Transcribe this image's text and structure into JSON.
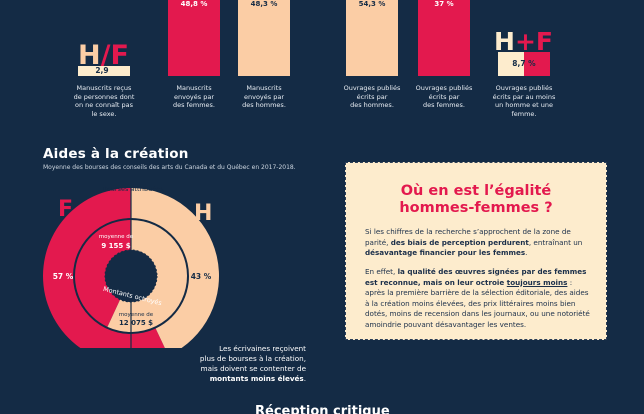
{
  "top_bars": [
    {
      "pct": "",
      "caption_lines": [
        "Manuscrits reçus",
        "de personnes dont",
        "on ne connaît pas",
        "le sexe."
      ],
      "bold_line": -1,
      "color": "",
      "hf_label": "H/F",
      "small_pct": "2,9"
    },
    {
      "pct": "48,8 %",
      "caption_lines": [
        "Manuscrits",
        "envoyés par",
        "des femmes."
      ],
      "bold_line": -1,
      "color": "#e3194e",
      "hf_label": "",
      "small_pct": ""
    },
    {
      "pct": "48,3 %",
      "caption_lines": [
        "Manuscrits",
        "envoyés par",
        "des hommes."
      ],
      "bold_line": -1,
      "color": "#fbcda5",
      "hf_label": "",
      "small_pct": ""
    },
    {
      "pct": "54,3 %",
      "caption_lines": [
        "Ouvrages publiés",
        "écrits par",
        "des hommes."
      ],
      "bold_line": -1,
      "color": "#fbcda5",
      "hf_label": "",
      "small_pct": ""
    },
    {
      "pct": "37 %",
      "caption_lines": [
        "Ouvrages publiés",
        "écrits par",
        "des femmes."
      ],
      "bold_line": -1,
      "color": "#e3194e",
      "hf_label": "",
      "small_pct": ""
    },
    {
      "pct": "",
      "caption_lines": [
        "Ouvrages publiés",
        "écrits par au moins",
        "un homme et une",
        "femme."
      ],
      "bold_line": -1,
      "color": "",
      "hf_label": "H+F",
      "small_pct": "8,7 %"
    }
  ],
  "section": {
    "title": "Aides à la création",
    "subtitle": "Moyenne des bourses des conseils des arts du Canada et du Québec en 2017-2018."
  },
  "chart_data": {
    "type": "pie",
    "title": "Aides à la création",
    "rings": [
      {
        "name": "Bourses attribuées",
        "slices": [
          {
            "label": "F",
            "value": 57,
            "display": "57 %",
            "color": "#e3194e"
          },
          {
            "label": "H",
            "value": 43,
            "display": "43 %",
            "color": "#fbcda5"
          }
        ]
      },
      {
        "name": "Montants octroyés",
        "slices": [
          {
            "label": "F",
            "value": 43.1,
            "display": "moyenne de 9 155 $",
            "color": "#e3194e"
          },
          {
            "label": "H",
            "value": 56.9,
            "display": "moyenne de 12 075 $",
            "color": "#fbcda5"
          }
        ]
      }
    ]
  },
  "ring_labels": {
    "outer": "Bourses attribuées",
    "inner": "Montants octroyés",
    "f_letter": "F",
    "h_letter": "H",
    "f_pct": "57 %",
    "h_pct": "43 %",
    "f_amount_small": "moyenne de",
    "f_amount": "9 155 $",
    "h_amount_small": "moyenne de",
    "h_amount": "12 075 $"
  },
  "note": {
    "lines": [
      "Les écrivaines reçoivent",
      "plus de bourses à la création,",
      "mais doivent se contenter de"
    ],
    "bold": "montants moins élevés",
    "end": "."
  },
  "panel": {
    "title_line1": "Où en est l’égalité",
    "title_line2": "hommes-femmes ?",
    "p1_a": "Si les chiffres de la recherche s’approchent de la zone de parité, ",
    "p1_b": "des biais de perception perdurent",
    "p1_c": ", entraînant un ",
    "p1_d": "désavantage financier pour les femmes",
    "p1_e": ".",
    "p2_a": "En effet, ",
    "p2_b": "la qualité des œuvres signées par des femmes est reconnue, mais on leur octroie ",
    "p2_c": "toujours moins",
    "p2_d": " : après la première barrière de la sélection éditoriale, des aides à la création moins élevées, des prix littéraires moins bien dotés, moins de recension dans les journaux, ou une notoriété amoindrie pouvant désavantager les ventes."
  },
  "bottom_heading": "Réception critique"
}
